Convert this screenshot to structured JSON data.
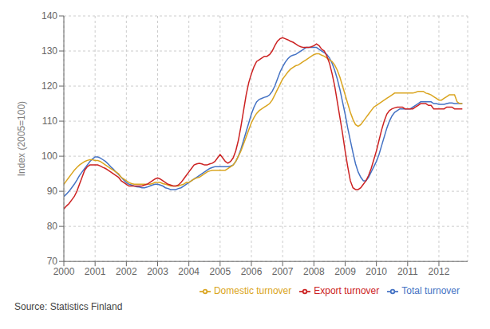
{
  "chart_data": {
    "type": "line",
    "ylabel": "Index (2005=100)",
    "annotations": [
      "Source: Statistics Finland"
    ],
    "xlim": [
      2000.0,
      2012.92
    ],
    "ylim": [
      70,
      140
    ],
    "yticks": [
      70,
      80,
      90,
      100,
      110,
      120,
      130,
      140
    ],
    "xticks": [
      2000,
      2001,
      2002,
      2003,
      2004,
      2005,
      2006,
      2007,
      2008,
      2009,
      2010,
      2011,
      2012
    ],
    "grid": true,
    "legend": "lower right",
    "x": [
      2000,
      2000.083333,
      2000.166667,
      2000.25,
      2000.333333,
      2000.416667,
      2000.5,
      2000.583333,
      2000.666667,
      2000.75,
      2000.833333,
      2000.916667,
      2001,
      2001.083333,
      2001.166667,
      2001.25,
      2001.333333,
      2001.416667,
      2001.5,
      2001.583333,
      2001.666667,
      2001.75,
      2001.833333,
      2001.916667,
      2002,
      2002.083333,
      2002.166667,
      2002.25,
      2002.333333,
      2002.416667,
      2002.5,
      2002.583333,
      2002.666667,
      2002.75,
      2002.833333,
      2002.916667,
      2003,
      2003.083333,
      2003.166667,
      2003.25,
      2003.333333,
      2003.416667,
      2003.5,
      2003.583333,
      2003.666667,
      2003.75,
      2003.833333,
      2003.916667,
      2004,
      2004.083333,
      2004.166667,
      2004.25,
      2004.333333,
      2004.416667,
      2004.5,
      2004.583333,
      2004.666667,
      2004.75,
      2004.833333,
      2004.916667,
      2005,
      2005.083333,
      2005.166667,
      2005.25,
      2005.333333,
      2005.416667,
      2005.5,
      2005.583333,
      2005.666667,
      2005.75,
      2005.833333,
      2005.916667,
      2006,
      2006.083333,
      2006.166667,
      2006.25,
      2006.333333,
      2006.416667,
      2006.5,
      2006.583333,
      2006.666667,
      2006.75,
      2006.833333,
      2006.916667,
      2007,
      2007.083333,
      2007.166667,
      2007.25,
      2007.333333,
      2007.416667,
      2007.5,
      2007.583333,
      2007.666667,
      2007.75,
      2007.833333,
      2007.916667,
      2008,
      2008.083333,
      2008.166667,
      2008.25,
      2008.333333,
      2008.416667,
      2008.5,
      2008.583333,
      2008.666667,
      2008.75,
      2008.833333,
      2008.916667,
      2009,
      2009.083333,
      2009.166667,
      2009.25,
      2009.333333,
      2009.416667,
      2009.5,
      2009.583333,
      2009.666667,
      2009.75,
      2009.833333,
      2009.916667,
      2010,
      2010.083333,
      2010.166667,
      2010.25,
      2010.333333,
      2010.416667,
      2010.5,
      2010.583333,
      2010.666667,
      2010.75,
      2010.833333,
      2010.916667,
      2011,
      2011.083333,
      2011.166667,
      2011.25,
      2011.333333,
      2011.416667,
      2011.5,
      2011.583333,
      2011.666667,
      2011.75,
      2011.833333,
      2011.916667,
      2012,
      2012.083333,
      2012.166667,
      2012.25,
      2012.333333,
      2012.416667,
      2012.5,
      2012.583333,
      2012.666667,
      2012.75
    ],
    "series": [
      {
        "name": "Total turnover",
        "color": "#4472C4",
        "values": [
          88.5,
          89.2,
          90.0,
          91.0,
          92.0,
          93.2,
          94.5,
          95.5,
          96.5,
          97.5,
          98.5,
          99.2,
          99.8,
          99.8,
          99.5,
          99.0,
          98.5,
          97.8,
          97.0,
          96.3,
          95.5,
          94.8,
          94.0,
          93.2,
          92.5,
          92.0,
          91.8,
          91.5,
          91.3,
          91.2,
          91.0,
          91.0,
          91.2,
          91.5,
          91.8,
          92.0,
          92.0,
          91.8,
          91.5,
          91.0,
          90.8,
          90.5,
          90.5,
          90.5,
          90.8,
          91.0,
          91.5,
          92.0,
          92.5,
          93.0,
          93.5,
          94.0,
          94.5,
          95.0,
          95.5,
          96.0,
          96.5,
          96.8,
          97.0,
          97.0,
          97.0,
          97.0,
          97.0,
          97.0,
          97.2,
          97.5,
          98.5,
          100.0,
          102.0,
          104.5,
          107.0,
          109.5,
          112.0,
          114.0,
          115.5,
          116.2,
          116.5,
          116.8,
          117.0,
          117.5,
          118.5,
          120.0,
          122.0,
          124.0,
          125.5,
          126.8,
          127.8,
          128.5,
          128.8,
          129.0,
          129.5,
          130.0,
          130.5,
          131.0,
          131.0,
          131.0,
          131.0,
          131.0,
          130.5,
          130.0,
          129.5,
          129.0,
          128.0,
          126.5,
          124.5,
          122.0,
          119.0,
          115.5,
          112.0,
          108.0,
          104.5,
          101.0,
          97.8,
          95.5,
          94.0,
          93.0,
          93.0,
          94.0,
          95.5,
          97.0,
          98.5,
          100.5,
          103.0,
          105.5,
          108.0,
          110.0,
          111.5,
          112.5,
          113.0,
          113.5,
          113.5,
          113.5,
          113.5,
          113.5,
          114.0,
          114.5,
          115.0,
          115.5,
          115.5,
          115.5,
          115.5,
          115.5,
          115.0,
          115.0,
          114.8,
          114.8,
          114.8,
          115.0,
          115.2,
          115.2,
          115.0,
          115.0,
          115.0,
          115.0
        ]
      },
      {
        "name": "Domestic turnover",
        "color": "#DAA520",
        "values": [
          92.0,
          93.0,
          94.0,
          95.0,
          96.0,
          96.8,
          97.5,
          98.0,
          98.5,
          98.8,
          99.0,
          99.0,
          98.8,
          98.8,
          98.5,
          98.0,
          97.5,
          97.0,
          96.5,
          96.0,
          95.5,
          95.0,
          94.0,
          93.5,
          93.0,
          92.5,
          92.2,
          92.0,
          92.0,
          92.0,
          92.0,
          92.0,
          92.0,
          92.0,
          92.2,
          92.5,
          92.5,
          92.5,
          92.2,
          92.0,
          91.8,
          91.5,
          91.5,
          91.5,
          91.5,
          91.8,
          92.0,
          92.5,
          92.5,
          93.0,
          93.5,
          93.8,
          94.0,
          94.5,
          95.0,
          95.5,
          95.8,
          96.0,
          96.0,
          96.0,
          96.0,
          96.0,
          96.0,
          96.5,
          97.0,
          97.5,
          98.5,
          100.0,
          101.5,
          103.5,
          105.5,
          107.5,
          109.5,
          111.0,
          112.2,
          113.0,
          113.5,
          114.0,
          114.5,
          115.0,
          116.0,
          117.5,
          119.0,
          120.5,
          122.0,
          123.0,
          124.0,
          124.8,
          125.3,
          125.8,
          126.0,
          126.5,
          127.0,
          127.5,
          128.0,
          128.5,
          129.0,
          129.2,
          129.2,
          128.8,
          128.5,
          128.0,
          127.5,
          127.0,
          126.0,
          124.5,
          122.5,
          120.0,
          117.5,
          115.0,
          112.5,
          110.5,
          109.0,
          108.5,
          109.0,
          110.0,
          111.0,
          112.0,
          113.0,
          114.0,
          114.5,
          115.0,
          115.5,
          116.0,
          116.5,
          117.0,
          117.5,
          118.0,
          118.0,
          118.0,
          118.0,
          118.0,
          118.0,
          118.0,
          118.0,
          118.2,
          118.5,
          118.5,
          118.5,
          118.0,
          117.8,
          117.5,
          117.0,
          116.5,
          116.0,
          116.0,
          116.5,
          117.0,
          117.5,
          117.5,
          117.5,
          115.5,
          115.0,
          115.0
        ]
      },
      {
        "name": "Export turnover",
        "color": "#CC2222",
        "values": [
          85.0,
          85.8,
          86.5,
          87.5,
          88.5,
          90.0,
          92.0,
          94.0,
          96.0,
          97.0,
          97.5,
          97.5,
          97.5,
          97.5,
          97.2,
          96.8,
          96.5,
          96.0,
          95.5,
          95.0,
          94.5,
          94.0,
          93.0,
          92.5,
          92.0,
          91.5,
          91.5,
          91.5,
          91.5,
          91.5,
          91.5,
          91.8,
          92.0,
          92.5,
          93.0,
          93.5,
          93.8,
          93.5,
          93.0,
          92.5,
          92.0,
          91.8,
          91.5,
          91.5,
          91.8,
          92.5,
          93.5,
          94.5,
          95.5,
          96.5,
          97.5,
          97.8,
          98.0,
          97.8,
          97.5,
          97.5,
          97.8,
          98.0,
          98.5,
          99.5,
          100.5,
          99.5,
          98.5,
          98.0,
          98.5,
          99.5,
          101.5,
          104.5,
          108.5,
          113.0,
          117.5,
          121.0,
          123.5,
          125.5,
          127.0,
          127.5,
          128.0,
          128.5,
          128.5,
          129.0,
          130.0,
          131.5,
          132.8,
          133.5,
          133.8,
          133.5,
          133.2,
          132.8,
          132.5,
          132.0,
          131.5,
          131.2,
          131.0,
          131.0,
          131.0,
          131.2,
          131.5,
          132.0,
          131.5,
          130.5,
          130.0,
          128.5,
          126.5,
          123.5,
          120.0,
          115.5,
          111.0,
          106.5,
          101.5,
          97.0,
          93.0,
          91.0,
          90.5,
          90.5,
          91.0,
          92.0,
          93.0,
          94.5,
          96.5,
          99.0,
          101.5,
          104.5,
          107.5,
          110.0,
          112.0,
          113.0,
          113.5,
          113.8,
          114.0,
          114.0,
          114.0,
          113.5,
          113.5,
          113.5,
          113.5,
          114.0,
          114.5,
          115.0,
          115.0,
          115.0,
          114.5,
          114.5,
          113.5,
          113.5,
          113.5,
          113.5,
          113.5,
          114.0,
          114.0,
          114.0,
          113.5,
          113.5,
          113.5,
          113.5
        ]
      }
    ]
  }
}
